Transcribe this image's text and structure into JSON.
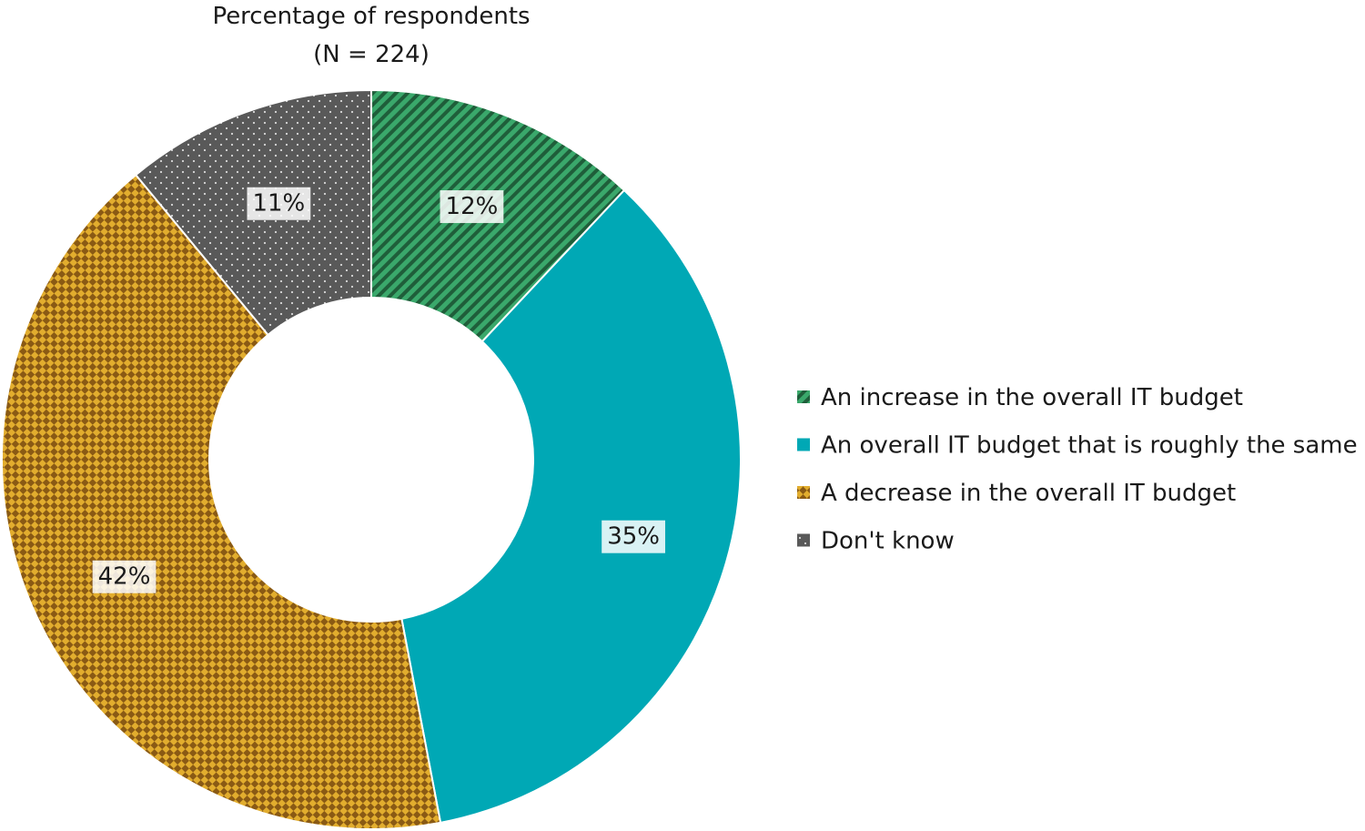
{
  "chart_data": {
    "type": "pie",
    "variant": "donut",
    "title": "Percentage of respondents",
    "subtitle": "(N = 224)",
    "legend_position": "right",
    "slices": [
      {
        "label": "An increase in the overall IT budget",
        "value": 12,
        "value_label": "12%",
        "color": "#3aa86b",
        "pattern": "diagonal-stripes"
      },
      {
        "label": "An overall IT budget that is roughly the same",
        "value": 35,
        "value_label": "35%",
        "color": "#00a8b5",
        "pattern": "solid"
      },
      {
        "label": "A decrease in the overall IT budget",
        "value": 42,
        "value_label": "42%",
        "color": "#e2ad2e",
        "pattern": "diamond-checker"
      },
      {
        "label": "Don't know",
        "value": 11,
        "value_label": "11%",
        "color": "#595959",
        "pattern": "dots"
      }
    ]
  }
}
